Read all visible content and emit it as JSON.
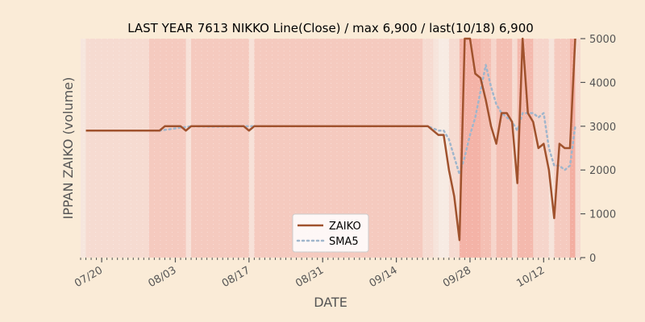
{
  "chart_data": {
    "type": "line",
    "title": "LAST YEAR 7613 NIKKO Line(Close) / max 6,900 / last(10/18) 6,900",
    "xlabel": "DATE",
    "ylabel": "IPPAN ZAIKO (volume)",
    "ylim": [
      0,
      5000
    ],
    "yticks": [
      "0",
      "1000",
      "2000",
      "3000",
      "4000",
      "5000"
    ],
    "y_axis_side": "right",
    "xlim": [
      "2023-07-16",
      "2023-10-19"
    ],
    "xticks": [
      {
        "date": "2023-07-20",
        "label": "07/20"
      },
      {
        "date": "2023-08-03",
        "label": "08/03"
      },
      {
        "date": "2023-08-17",
        "label": "08/17"
      },
      {
        "date": "2023-08-31",
        "label": "08/31"
      },
      {
        "date": "2023-09-14",
        "label": "09/14"
      },
      {
        "date": "2023-09-28",
        "label": "09/28"
      },
      {
        "date": "2023-10-12",
        "label": "10/12"
      }
    ],
    "legend": {
      "position": "lower-center"
    },
    "colors": {
      "background": "#FAEBD7",
      "plot_background": "#F8F2EA",
      "zaiko": "#A0522D",
      "sma5": "#A0B6CC",
      "band": "#F08070",
      "tick_text": "#555555"
    },
    "series": [
      {
        "name": "ZAIKO",
        "style": "solid",
        "points": [
          [
            "2023-07-17",
            2900
          ],
          [
            "2023-07-20",
            2900
          ],
          [
            "2023-07-24",
            2900
          ],
          [
            "2023-07-27",
            2900
          ],
          [
            "2023-07-31",
            2900
          ],
          [
            "2023-08-01",
            3000
          ],
          [
            "2023-08-03",
            3000
          ],
          [
            "2023-08-04",
            3000
          ],
          [
            "2023-08-05",
            2900
          ],
          [
            "2023-08-06",
            3000
          ],
          [
            "2023-08-10",
            3000
          ],
          [
            "2023-08-14",
            3000
          ],
          [
            "2023-08-16",
            3000
          ],
          [
            "2023-08-17",
            2900
          ],
          [
            "2023-08-18",
            3000
          ],
          [
            "2023-08-24",
            3000
          ],
          [
            "2023-08-31",
            3000
          ],
          [
            "2023-09-07",
            3000
          ],
          [
            "2023-09-14",
            3000
          ],
          [
            "2023-09-19",
            3000
          ],
          [
            "2023-09-20",
            3000
          ],
          [
            "2023-09-22",
            2800
          ],
          [
            "2023-09-23",
            2800
          ],
          [
            "2023-09-24",
            2000
          ],
          [
            "2023-09-25",
            1400
          ],
          [
            "2023-09-26",
            400
          ],
          [
            "2023-09-27",
            5000
          ],
          [
            "2023-09-28",
            5000
          ],
          [
            "2023-09-29",
            4200
          ],
          [
            "2023-09-30",
            4100
          ],
          [
            "2023-10-01",
            3600
          ],
          [
            "2023-10-02",
            3000
          ],
          [
            "2023-10-03",
            2600
          ],
          [
            "2023-10-04",
            3300
          ],
          [
            "2023-10-05",
            3300
          ],
          [
            "2023-10-06",
            3100
          ],
          [
            "2023-10-07",
            1700
          ],
          [
            "2023-10-08",
            5000
          ],
          [
            "2023-10-09",
            3300
          ],
          [
            "2023-10-10",
            3100
          ],
          [
            "2023-10-11",
            2500
          ],
          [
            "2023-10-12",
            2600
          ],
          [
            "2023-10-13",
            2000
          ],
          [
            "2023-10-14",
            900
          ],
          [
            "2023-10-15",
            2600
          ],
          [
            "2023-10-16",
            2500
          ],
          [
            "2023-10-17",
            2500
          ],
          [
            "2023-10-18",
            5000
          ]
        ]
      },
      {
        "name": "SMA5",
        "style": "dotted",
        "points": [
          [
            "2023-07-31",
            2900
          ],
          [
            "2023-08-03",
            2950
          ],
          [
            "2023-08-06",
            3000
          ],
          [
            "2023-08-10",
            2990
          ],
          [
            "2023-08-17",
            3000
          ],
          [
            "2023-08-24",
            3000
          ],
          [
            "2023-09-14",
            3000
          ],
          [
            "2023-09-20",
            3000
          ],
          [
            "2023-09-22",
            2900
          ],
          [
            "2023-09-23",
            2900
          ],
          [
            "2023-09-24",
            2700
          ],
          [
            "2023-09-25",
            2300
          ],
          [
            "2023-09-26",
            1900
          ],
          [
            "2023-09-27",
            2300
          ],
          [
            "2023-09-28",
            2800
          ],
          [
            "2023-09-29",
            3200
          ],
          [
            "2023-09-30",
            3800
          ],
          [
            "2023-10-01",
            4400
          ],
          [
            "2023-10-02",
            3900
          ],
          [
            "2023-10-03",
            3500
          ],
          [
            "2023-10-04",
            3300
          ],
          [
            "2023-10-05",
            3200
          ],
          [
            "2023-10-06",
            3100
          ],
          [
            "2023-10-07",
            2900
          ],
          [
            "2023-10-08",
            3300
          ],
          [
            "2023-10-09",
            3300
          ],
          [
            "2023-10-10",
            3300
          ],
          [
            "2023-10-11",
            3200
          ],
          [
            "2023-10-12",
            3300
          ],
          [
            "2023-10-13",
            2500
          ],
          [
            "2023-10-14",
            2100
          ],
          [
            "2023-10-15",
            2100
          ],
          [
            "2023-10-16",
            2000
          ],
          [
            "2023-10-17",
            2100
          ],
          [
            "2023-10-18",
            3000
          ]
        ]
      }
    ],
    "shaded_bands": [
      {
        "start": "2023-07-16",
        "end": "2023-07-17",
        "opacity": 0.1
      },
      {
        "start": "2023-07-17",
        "end": "2023-07-29",
        "opacity": 0.2
      },
      {
        "start": "2023-07-29",
        "end": "2023-08-05",
        "opacity": 0.35
      },
      {
        "start": "2023-08-05",
        "end": "2023-08-06",
        "opacity": 0.15
      },
      {
        "start": "2023-08-06",
        "end": "2023-08-17",
        "opacity": 0.35
      },
      {
        "start": "2023-08-17",
        "end": "2023-08-18",
        "opacity": 0.15
      },
      {
        "start": "2023-08-18",
        "end": "2023-09-19",
        "opacity": 0.35
      },
      {
        "start": "2023-09-19",
        "end": "2023-09-21",
        "opacity": 0.2
      },
      {
        "start": "2023-09-21",
        "end": "2023-09-22",
        "opacity": 0.12
      },
      {
        "start": "2023-09-22",
        "end": "2023-09-24",
        "opacity": 0.06
      },
      {
        "start": "2023-09-24",
        "end": "2023-09-26",
        "opacity": 0.2
      },
      {
        "start": "2023-09-26",
        "end": "2023-09-30",
        "opacity": 0.55
      },
      {
        "start": "2023-09-30",
        "end": "2023-10-02",
        "opacity": 0.45
      },
      {
        "start": "2023-10-02",
        "end": "2023-10-03",
        "opacity": 0.25
      },
      {
        "start": "2023-10-03",
        "end": "2023-10-06",
        "opacity": 0.45
      },
      {
        "start": "2023-10-06",
        "end": "2023-10-07",
        "opacity": 0.2
      },
      {
        "start": "2023-10-07",
        "end": "2023-10-10",
        "opacity": 0.5
      },
      {
        "start": "2023-10-10",
        "end": "2023-10-13",
        "opacity": 0.25
      },
      {
        "start": "2023-10-13",
        "end": "2023-10-14",
        "opacity": 0.12
      },
      {
        "start": "2023-10-14",
        "end": "2023-10-17",
        "opacity": 0.35
      },
      {
        "start": "2023-10-17",
        "end": "2023-10-18",
        "opacity": 0.6
      },
      {
        "start": "2023-10-18",
        "end": "2023-10-19",
        "opacity": 0.2
      }
    ]
  }
}
